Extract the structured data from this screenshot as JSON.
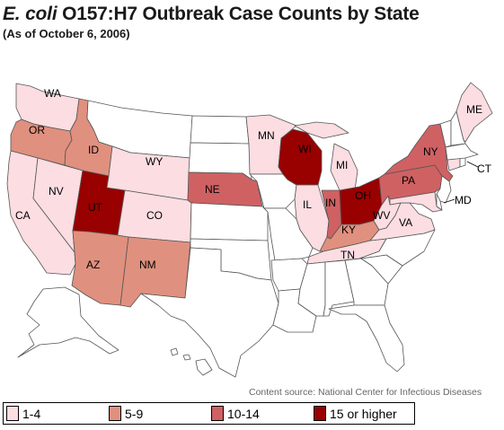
{
  "title": {
    "italic": "E. coli",
    "rest": " O157:H7 Outbreak Case Counts by State"
  },
  "subtitle": "(As of October 6, 2006)",
  "source": "Content source: National Center for Infectious Diseases",
  "colors": {
    "none": "#ffffff",
    "c1": "#fbdde2",
    "c2": "#e0907e",
    "c3": "#cf6163",
    "c4": "#990000"
  },
  "legend": [
    {
      "label": "1-4",
      "category": "c1"
    },
    {
      "label": "5-9",
      "category": "c2"
    },
    {
      "label": "10-14",
      "category": "c3"
    },
    {
      "label": "15 or higher",
      "category": "c4"
    }
  ],
  "states": {
    "WA": "c1",
    "OR": "c2",
    "ID": "c2",
    "CA": "c1",
    "NV": "c1",
    "UT": "c4",
    "AZ": "c2",
    "WY": "c1",
    "CO": "c1",
    "NM": "c2",
    "NE": "c3",
    "MN": "c1",
    "WI": "c4",
    "IL": "c1",
    "MI": "c1",
    "IN": "c3",
    "OH": "c4",
    "KY": "c2",
    "TN": "c1",
    "WV": "c1",
    "VA": "c1",
    "PA": "c3",
    "NY": "c3",
    "ME": "c1",
    "CT": "c1",
    "MD": "c1"
  },
  "labels": [
    "WA",
    "OR",
    "ID",
    "CA",
    "NV",
    "UT",
    "AZ",
    "WY",
    "CO",
    "NM",
    "NE",
    "MN",
    "WI",
    "IL",
    "MI",
    "IN",
    "OH",
    "KY",
    "TN",
    "WV",
    "VA",
    "PA",
    "NY",
    "ME",
    "CT",
    "MD"
  ]
}
